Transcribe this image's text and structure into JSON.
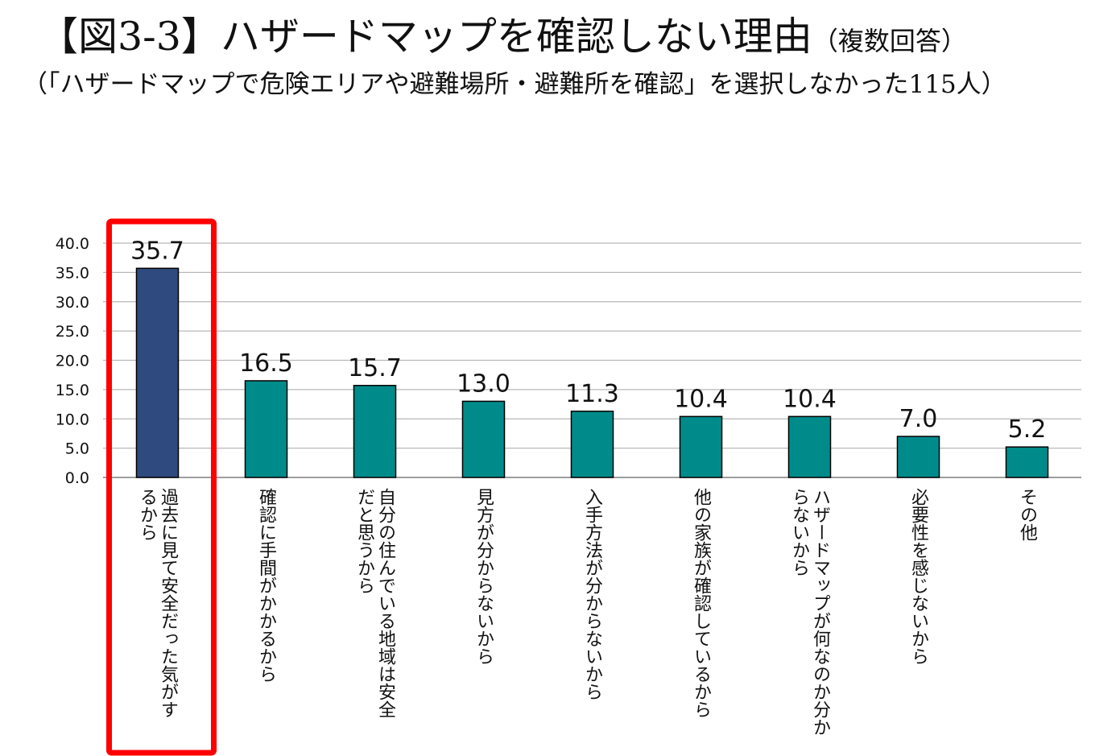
{
  "header": {
    "title": "【図3-3】ハザードマップを確認しない理由",
    "title_note": "（複数回答）",
    "subtitle": "（「ハザードマップで危険エリアや避難場所・避難所を確認」を選択しなかった115人）"
  },
  "chart_data": {
    "type": "bar",
    "categories": [
      "過去に見て安全だった気がするから",
      "確認に手間がかかるから",
      "自分の住んでいる地域は安全だと思うから",
      "見方が分からないから",
      "入手方法が分からないから",
      "他の家族が確認しているから",
      "ハザードマップが何なのか分からないから",
      "必要性を感じないから",
      "その他"
    ],
    "category_lines": [
      [
        "過去に見て安全だった気がす",
        "るから"
      ],
      [
        "確認に手間がかかるから"
      ],
      [
        "自分の住んでいる地域は安全",
        "だと思うから"
      ],
      [
        "見方が分からないから"
      ],
      [
        "入手方法が分からないから"
      ],
      [
        "他の家族が確認しているから"
      ],
      [
        "ハザードマップが何なのか分か",
        "らないから"
      ],
      [
        "必要性を感じないから"
      ],
      [
        "その他"
      ]
    ],
    "values": [
      35.7,
      16.5,
      15.7,
      13.0,
      11.3,
      10.4,
      10.4,
      7.0,
      5.2
    ],
    "value_labels": [
      "35.7",
      "16.5",
      "15.7",
      "13.0",
      "11.3",
      "10.4",
      "10.4",
      "7.0",
      "5.2"
    ],
    "ylim": [
      0,
      40
    ],
    "yticks": [
      "0.0",
      "5.0",
      "10.0",
      "15.0",
      "20.0",
      "25.0",
      "30.0",
      "35.0",
      "40.0"
    ],
    "grid": true,
    "legend": "none",
    "highlight_index": 0,
    "colors": {
      "bar": "#008B8B",
      "highlight_bar": "#2F4A7E",
      "highlight_box": "#FF0000",
      "grid": "#B8B8B8",
      "axis": "#7F7F7F"
    }
  }
}
